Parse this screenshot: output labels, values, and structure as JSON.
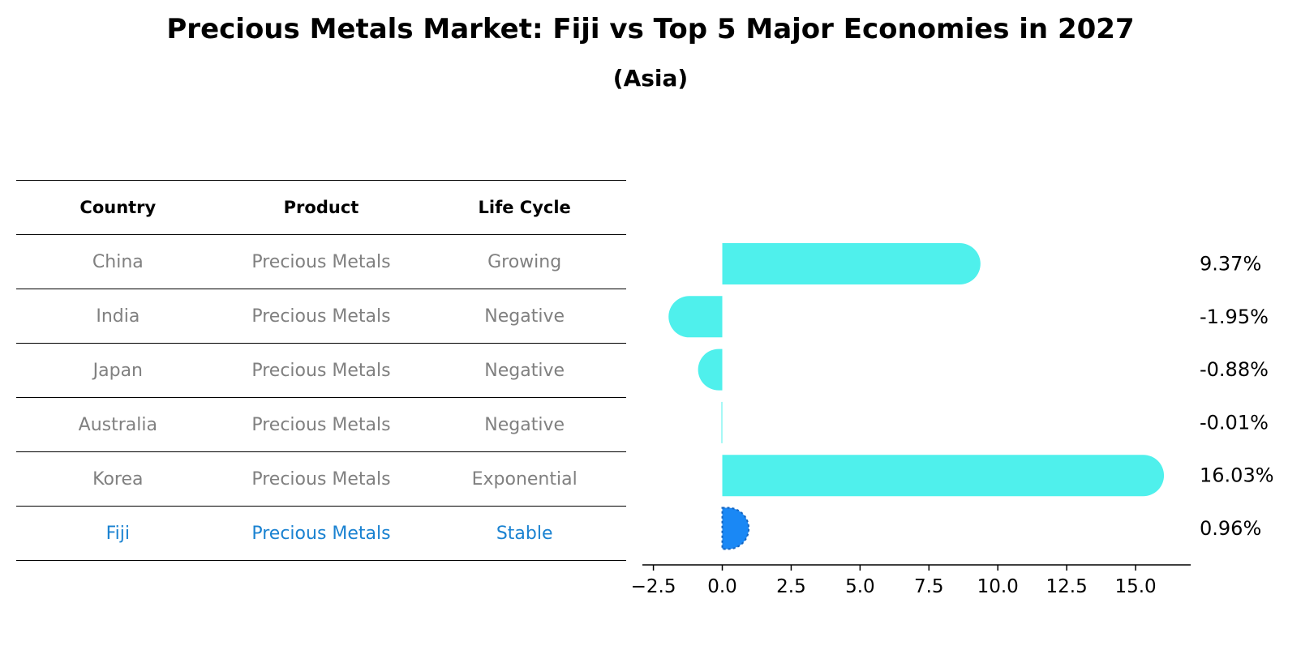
{
  "chart_data": {
    "type": "bar",
    "orientation": "horizontal",
    "title": "Precious Metals Market: Fiji vs Top 5 Major Economies in 2027",
    "subtitle": "(Asia)",
    "table": {
      "columns": [
        "Country",
        "Product",
        "Life Cycle"
      ],
      "rows": [
        [
          "China",
          "Precious Metals",
          "Growing"
        ],
        [
          "India",
          "Precious Metals",
          "Negative"
        ],
        [
          "Japan",
          "Precious Metals",
          "Negative"
        ],
        [
          "Australia",
          "Precious Metals",
          "Negative"
        ],
        [
          "Korea",
          "Precious Metals",
          "Exponential"
        ],
        [
          "Fiji",
          "Precious Metals",
          "Stable"
        ]
      ],
      "highlight_row": 5
    },
    "categories": [
      "China",
      "India",
      "Japan",
      "Australia",
      "Korea",
      "Fiji"
    ],
    "values": [
      9.37,
      -1.95,
      -0.88,
      -0.01,
      16.03,
      0.96
    ],
    "value_labels": [
      "9.37%",
      "-1.95%",
      "-0.88%",
      "-0.01%",
      "16.03%",
      "0.96%"
    ],
    "xlim": [
      -2.9,
      17.0
    ],
    "xticks": [
      -2.5,
      0.0,
      2.5,
      5.0,
      7.5,
      10.0,
      12.5,
      15.0
    ],
    "xtick_labels": [
      "−2.5",
      "0.0",
      "2.5",
      "5.0",
      "7.5",
      "10.0",
      "12.5",
      "15.0"
    ],
    "colors": {
      "default": "#4ff0ec",
      "highlight": "#1a88f5",
      "highlight_text": "#1a82d1",
      "muted_text": "#808080"
    }
  }
}
